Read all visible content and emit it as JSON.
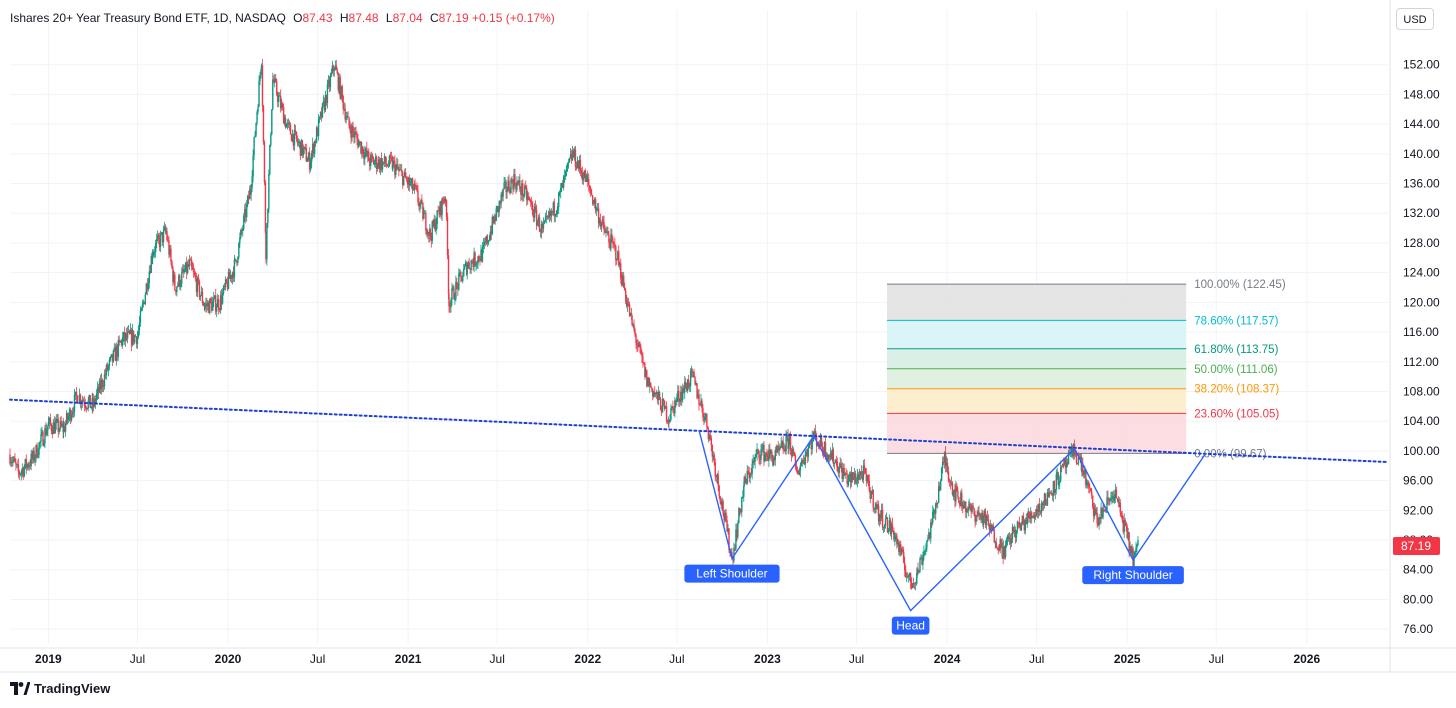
{
  "header": {
    "title": "Ishares 20+ Year Treasury Bond ETF, 1D, NASDAQ",
    "open_label": "O",
    "open": "87.43",
    "high_label": "H",
    "high": "87.48",
    "low_label": "L",
    "low": "87.04",
    "close_label": "C",
    "close": "87.19",
    "change": "+0.15 (+0.17%)"
  },
  "currency_button": "USD",
  "brand": "TradingView",
  "last_price_badge": "87.19",
  "colors": {
    "up": "#089981",
    "down": "#f23645",
    "pattern_line": "#2962ff",
    "trendline": "#1c3fd9",
    "label_bg": "#2962ff",
    "price_badge": "#f23645"
  },
  "chart_data": {
    "type": "candlestick",
    "title": "Ishares 20+ Year Treasury Bond ETF, 1D, NASDAQ",
    "xlabel": "",
    "ylabel": "",
    "x_range": [
      "2018-10-15",
      "2026-06-15"
    ],
    "ylim": [
      74,
      156
    ],
    "y_ticks": [
      "152.00",
      "148.00",
      "144.00",
      "140.00",
      "136.00",
      "132.00",
      "128.00",
      "124.00",
      "120.00",
      "116.00",
      "112.00",
      "108.00",
      "104.00",
      "100.00",
      "96.00",
      "92.00",
      "88.00",
      "84.00",
      "80.00",
      "76.00"
    ],
    "x_ticks": [
      {
        "label": "2019",
        "date": "2019-01-01"
      },
      {
        "label": "Jul",
        "date": "2019-07-01"
      },
      {
        "label": "2020",
        "date": "2020-01-01"
      },
      {
        "label": "Jul",
        "date": "2020-07-01"
      },
      {
        "label": "2021",
        "date": "2021-01-01"
      },
      {
        "label": "Jul",
        "date": "2021-07-01"
      },
      {
        "label": "2022",
        "date": "2022-01-01"
      },
      {
        "label": "Jul",
        "date": "2022-07-01"
      },
      {
        "label": "2023",
        "date": "2023-01-01"
      },
      {
        "label": "Jul",
        "date": "2023-07-01"
      },
      {
        "label": "2024",
        "date": "2024-01-01"
      },
      {
        "label": "Jul",
        "date": "2024-07-01"
      },
      {
        "label": "2025",
        "date": "2025-01-01"
      },
      {
        "label": "Jul",
        "date": "2025-07-01"
      },
      {
        "label": "2026",
        "date": "2026-01-01"
      }
    ],
    "grid": true,
    "price_path": [
      [
        "2018-10-15",
        99.5
      ],
      [
        "2018-11-01",
        97.0
      ],
      [
        "2018-12-01",
        99.0
      ],
      [
        "2019-01-01",
        103.5
      ],
      [
        "2019-02-01",
        103.0
      ],
      [
        "2019-03-01",
        107.5
      ],
      [
        "2019-04-01",
        106.0
      ],
      [
        "2019-05-01",
        111.0
      ],
      [
        "2019-06-01",
        115.0
      ],
      [
        "2019-07-01",
        115.5
      ],
      [
        "2019-08-01",
        127.0
      ],
      [
        "2019-08-28",
        129.5
      ],
      [
        "2019-09-15",
        122.0
      ],
      [
        "2019-10-15",
        125.0
      ],
      [
        "2019-11-15",
        119.5
      ],
      [
        "2019-12-15",
        120.0
      ],
      [
        "2020-01-15",
        125.0
      ],
      [
        "2020-02-15",
        135.0
      ],
      [
        "2020-03-09",
        153.0
      ],
      [
        "2020-03-18",
        127.0
      ],
      [
        "2020-04-01",
        150.0
      ],
      [
        "2020-05-01",
        143.5
      ],
      [
        "2020-06-15",
        139.0
      ],
      [
        "2020-08-04",
        152.0
      ],
      [
        "2020-09-01",
        144.0
      ],
      [
        "2020-10-15",
        139.0
      ],
      [
        "2020-12-01",
        138.5
      ],
      [
        "2021-01-15",
        135.0
      ],
      [
        "2021-02-15",
        129.0
      ],
      [
        "2021-03-18",
        134.5
      ],
      [
        "2021-03-25",
        120.0
      ],
      [
        "2021-05-01",
        125.0
      ],
      [
        "2021-06-01",
        126.5
      ],
      [
        "2021-07-15",
        135.0
      ],
      [
        "2021-08-04",
        136.5
      ],
      [
        "2021-09-01",
        134.0
      ],
      [
        "2021-10-01",
        129.5
      ],
      [
        "2021-11-01",
        133.5
      ],
      [
        "2021-12-01",
        140.0
      ],
      [
        "2022-01-01",
        136.0
      ],
      [
        "2022-02-01",
        130.0
      ],
      [
        "2022-03-01",
        126.5
      ],
      [
        "2022-04-01",
        117.0
      ],
      [
        "2022-05-01",
        109.5
      ],
      [
        "2022-06-15",
        104.5
      ],
      [
        "2022-07-01",
        107.0
      ],
      [
        "2022-08-01",
        110.0
      ],
      [
        "2022-09-01",
        103.5
      ],
      [
        "2022-10-21",
        85.5
      ],
      [
        "2022-11-15",
        95.5
      ],
      [
        "2022-12-15",
        100.0
      ],
      [
        "2023-01-15",
        99.0
      ],
      [
        "2023-02-15",
        101.5
      ],
      [
        "2023-03-01",
        97.0
      ],
      [
        "2023-04-05",
        102.0
      ],
      [
        "2023-05-15",
        99.0
      ],
      [
        "2023-06-15",
        96.0
      ],
      [
        "2023-07-15",
        97.0
      ],
      [
        "2023-08-15",
        91.5
      ],
      [
        "2023-09-15",
        89.0
      ],
      [
        "2023-10-19",
        82.0
      ],
      [
        "2023-11-01",
        83.5
      ],
      [
        "2023-12-01",
        90.0
      ],
      [
        "2023-12-27",
        99.0
      ],
      [
        "2024-01-15",
        94.5
      ],
      [
        "2024-02-15",
        92.0
      ],
      [
        "2024-03-15",
        91.0
      ],
      [
        "2024-04-25",
        86.5
      ],
      [
        "2024-05-15",
        89.0
      ],
      [
        "2024-06-15",
        91.0
      ],
      [
        "2024-07-15",
        93.0
      ],
      [
        "2024-08-15",
        96.5
      ],
      [
        "2024-09-16",
        100.0
      ],
      [
        "2024-10-01",
        98.0
      ],
      [
        "2024-11-01",
        90.5
      ],
      [
        "2024-12-06",
        94.5
      ],
      [
        "2025-01-13",
        85.5
      ],
      [
        "2025-01-24",
        87.19
      ]
    ],
    "head_and_shoulders": [
      [
        "2022-08-15",
        102.8
      ],
      [
        "2022-10-21",
        85.5
      ],
      [
        "2023-04-05",
        102.0
      ],
      [
        "2023-10-19",
        78.5
      ],
      [
        "2024-09-16",
        100.3
      ],
      [
        "2025-01-13",
        85.3
      ],
      [
        "2025-06-10",
        99.7
      ]
    ],
    "trendline": [
      [
        "2018-10-15",
        106.9
      ],
      [
        "2026-06-15",
        98.5
      ]
    ],
    "annotations": [
      {
        "text": "Left Shoulder",
        "date": "2022-10-21",
        "price": 85.5
      },
      {
        "text": "Head",
        "date": "2023-10-19",
        "price": 78.5
      },
      {
        "text": "Right Shoulder",
        "date": "2025-01-13",
        "price": 85.3
      }
    ],
    "fibonacci": {
      "start": "2023-09-01",
      "end": "2025-05-01",
      "levels": [
        {
          "label": "100.00% (122.45)",
          "price": 122.45,
          "color": "#787b86",
          "fill": "#e0e0e2"
        },
        {
          "label": "78.60% (117.57)",
          "price": 117.57,
          "color": "#00bcd4",
          "fill": "#d3f3f6"
        },
        {
          "label": "61.80% (113.75)",
          "price": 113.75,
          "color": "#089981",
          "fill": "#d3ede3"
        },
        {
          "label": "50.00% (111.06)",
          "price": 111.06,
          "color": "#4caf50",
          "fill": "#dceedc"
        },
        {
          "label": "38.20% (108.37)",
          "price": 108.37,
          "color": "#ff9800",
          "fill": "#fdebc8"
        },
        {
          "label": "23.60% (105.05)",
          "price": 105.05,
          "color": "#f23645",
          "fill": "#fbd7dd"
        },
        {
          "label": "0.00% (99.67)",
          "price": 99.67,
          "color": "#787b86",
          "fill": "none"
        }
      ]
    }
  }
}
